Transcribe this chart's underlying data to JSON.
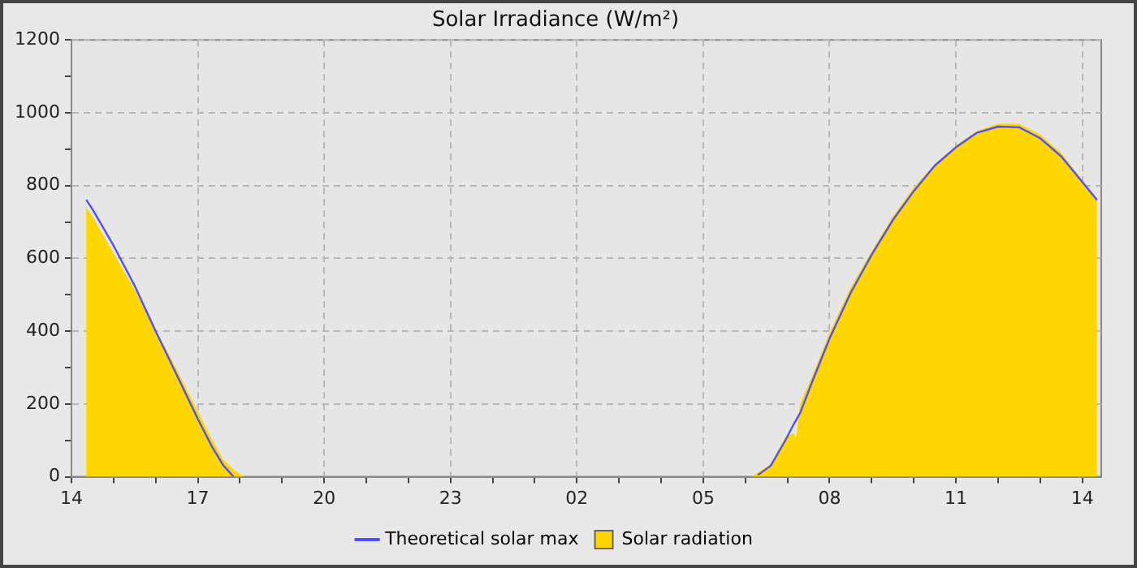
{
  "chart_data": {
    "type": "area",
    "title": "Solar Irradiance (W/m²)",
    "x": [
      "--01-01T14:21",
      "--01-01T14:30",
      "--01-01T15:00",
      "--01-01T15:30",
      "--01-01T16:00",
      "--01-01T16:30",
      "--01-01T17:00",
      "--01-01T17:21",
      "--01-01T17:36",
      "--01-01T17:51",
      "--01-01T18:06",
      "--01-02T06:09",
      "--01-02T06:18",
      "--01-02T06:36",
      "--01-02T06:57",
      "--01-02T07:09",
      "--01-02T07:12",
      "--01-02T07:18",
      "--01-02T07:36",
      "--01-02T08:00",
      "--01-02T08:30",
      "--01-02T09:00",
      "--01-02T09:30",
      "--01-02T10:00",
      "--01-02T10:30",
      "--01-02T11:00",
      "--01-02T11:30",
      "--01-02T12:00",
      "--01-02T12:30",
      "--01-02T13:00",
      "--01-02T13:30",
      "--01-02T14:00",
      "--01-02T14:21"
    ],
    "series": [
      {
        "name": "Theoretical solar max",
        "type": "line",
        "color": "#5050ff",
        "values": [
          761,
          735,
          635,
          525,
          400,
          280,
          159,
          80,
          32,
          0,
          null,
          null,
          5,
          30,
          100,
          145,
          155,
          175,
          265,
          380,
          505,
          610,
          705,
          785,
          855,
          905,
          945,
          962,
          960,
          930,
          880,
          810,
          760
        ]
      },
      {
        "name": "Solar radiation",
        "color": "#ffd700",
        "values": [
          740,
          715,
          615,
          515,
          405,
          295,
          180,
          100,
          48,
          20,
          0,
          0,
          12,
          35,
          110,
          120,
          105,
          200,
          280,
          396,
          520,
          620,
          715,
          795,
          860,
          910,
          950,
          970,
          970,
          940,
          890,
          815,
          760
        ]
      }
    ],
    "xlim": [
      "--01-01T14:00",
      "--01-02T14:27"
    ],
    "xticks": [
      {
        "value": "--01-01T14:00",
        "label": "14"
      },
      {
        "value": "--01-01T15:00",
        "label": null
      },
      {
        "value": "--01-01T16:00",
        "label": null
      },
      {
        "value": "--01-01T17:00",
        "label": "17"
      },
      {
        "value": "--01-01T18:00",
        "label": null
      },
      {
        "value": "--01-01T19:00",
        "label": null
      },
      {
        "value": "--01-01T20:00",
        "label": "20"
      },
      {
        "value": "--01-01T21:00",
        "label": null
      },
      {
        "value": "--01-01T22:00",
        "label": null
      },
      {
        "value": "--01-01T23:00",
        "label": "23"
      },
      {
        "value": "--01-02T00:00",
        "label": null
      },
      {
        "value": "--01-02T01:00",
        "label": null
      },
      {
        "value": "--01-02T02:00",
        "label": "02"
      },
      {
        "value": "--01-02T03:00",
        "label": null
      },
      {
        "value": "--01-02T04:00",
        "label": null
      },
      {
        "value": "--01-02T05:00",
        "label": "05"
      },
      {
        "value": "--01-02T06:00",
        "label": null
      },
      {
        "value": "--01-02T07:00",
        "label": null
      },
      {
        "value": "--01-02T08:00",
        "label": "08"
      },
      {
        "value": "--01-02T09:00",
        "label": null
      },
      {
        "value": "--01-02T10:00",
        "label": null
      },
      {
        "value": "--01-02T11:00",
        "label": "11"
      },
      {
        "value": "--01-02T12:00",
        "label": null
      },
      {
        "value": "--01-02T13:00",
        "label": null
      },
      {
        "value": "--01-02T14:00",
        "label": "14"
      }
    ],
    "ylim": [
      0,
      1200
    ],
    "yticks": [
      0,
      {
        "value": 100,
        "label": null
      },
      200,
      {
        "value": 300,
        "label": null
      },
      400,
      {
        "value": 500,
        "label": null
      },
      600,
      {
        "value": 700,
        "label": null
      },
      800,
      {
        "value": 900,
        "label": null
      },
      1000,
      {
        "value": 1100,
        "label": null
      },
      1200
    ],
    "grid": true,
    "legend": "bottom",
    "marker": "none",
    "line_style": "solid"
  }
}
